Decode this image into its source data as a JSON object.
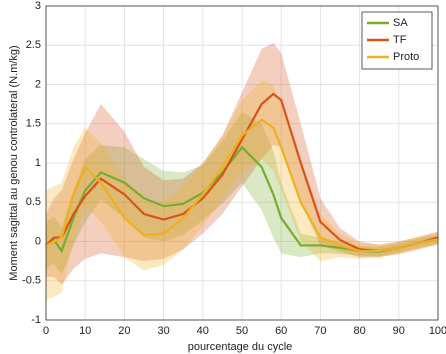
{
  "chart_data": {
    "type": "line",
    "xlabel": "pourcentage du cycle",
    "ylabel": "Moment sagittal au genou controlateral (N.m/kg)",
    "x": [
      0,
      2,
      4,
      7,
      10,
      14,
      20,
      25,
      30,
      35,
      40,
      45,
      50,
      55,
      58,
      60,
      65,
      70,
      75,
      80,
      85,
      90,
      95,
      100
    ],
    "series": [
      {
        "name": "SA",
        "color": "#77ac30",
        "values": [
          -0.05,
          0.02,
          -0.12,
          0.3,
          0.65,
          0.88,
          0.75,
          0.55,
          0.45,
          0.48,
          0.62,
          0.88,
          1.2,
          0.95,
          0.6,
          0.3,
          -0.05,
          -0.05,
          -0.08,
          -0.12,
          -0.13,
          -0.08,
          -0.02,
          0.03
        ],
        "errors": [
          0.3,
          0.3,
          0.3,
          0.35,
          0.4,
          0.35,
          0.45,
          0.5,
          0.45,
          0.4,
          0.35,
          0.4,
          0.45,
          0.55,
          0.55,
          0.45,
          0.15,
          0.1,
          0.08,
          0.06,
          0.06,
          0.06,
          0.06,
          0.06
        ]
      },
      {
        "name": "TF",
        "color": "#d95319",
        "values": [
          -0.05,
          0.05,
          0.05,
          0.35,
          0.58,
          0.8,
          0.6,
          0.35,
          0.28,
          0.35,
          0.55,
          0.85,
          1.3,
          1.75,
          1.88,
          1.8,
          1.0,
          0.25,
          0.02,
          -0.1,
          -0.12,
          -0.08,
          -0.02,
          0.05
        ],
        "errors": [
          0.4,
          0.5,
          0.6,
          0.7,
          0.8,
          0.95,
          0.8,
          0.6,
          0.5,
          0.45,
          0.45,
          0.5,
          0.6,
          0.7,
          0.65,
          0.6,
          0.5,
          0.3,
          0.15,
          0.1,
          0.08,
          0.08,
          0.08,
          0.08
        ]
      },
      {
        "name": "Proto",
        "color": "#edb120",
        "values": [
          -0.05,
          0.0,
          0.05,
          0.6,
          0.95,
          0.75,
          0.3,
          0.08,
          0.1,
          0.3,
          0.6,
          0.95,
          1.35,
          1.55,
          1.45,
          1.2,
          0.5,
          0.05,
          -0.05,
          -0.12,
          -0.12,
          -0.08,
          -0.02,
          0.03
        ],
        "errors": [
          0.7,
          0.7,
          0.7,
          0.6,
          0.5,
          0.5,
          0.5,
          0.45,
          0.4,
          0.4,
          0.4,
          0.4,
          0.45,
          0.5,
          0.55,
          0.55,
          0.5,
          0.3,
          0.15,
          0.1,
          0.08,
          0.08,
          0.08,
          0.08
        ]
      }
    ],
    "xlim": [
      0,
      100
    ],
    "xticks": [
      0,
      10,
      20,
      30,
      40,
      50,
      60,
      70,
      80,
      90,
      100
    ],
    "ylim": [
      -1,
      3
    ],
    "yticks": [
      -1,
      -0.5,
      0,
      0.5,
      1,
      1.5,
      2,
      2.5,
      3
    ],
    "grid": true,
    "legend": "upper right"
  }
}
